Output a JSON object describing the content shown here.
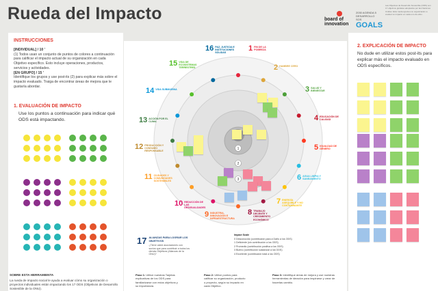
{
  "header": {
    "title": "Rueda del Impacto",
    "logo_text": "board of innovation",
    "logo_sub": "",
    "goals_top": "2030 AGENDA 5 DESARROLLO SOS",
    "goals_big": "GOALS"
  },
  "instructions": {
    "heading": "INSTRUCCIONES",
    "lines": [
      "[INDIVIDUAL] / 10 '",
      "(1) Todos usan un conjunto de puntos de colores a continuación para calificar el impacto actual de su organización en cada Objetivo específico. Esto incluye operaciones, productos, servicios y actividades.",
      "[EN GRUPO] / 15 '",
      "Identifique los grupos y use post-its (2) para explicar más sobre el impacto evaluado. Traiga de encontrar áreas de mejora que le gustaría abordar."
    ]
  },
  "section1": {
    "heading": "1. EVALUACIÓN DE IMPACTO",
    "text": "Use los puntos a continuación para indicar qué ODS está impactando."
  },
  "section2": {
    "heading": "2. EXPLICACIÓN DE IMPACTO",
    "text": "No dude en utilizar estos post-its para explicar más el impacto evaluado en ODS específicos."
  },
  "about": {
    "heading": "SOBRE ESTA HERRAMIENTA",
    "text": "La rueda de impacto social le ayuda a evaluar cómo su organización o proyectos individuales están impactando los 17 ODS (Objetivos de Desarrollo Sostenible de la ONU)."
  },
  "colors": {
    "yellow": "#f6e53a",
    "green": "#5ab54a",
    "purple": "#8c2f8b",
    "teal": "#27b5b5",
    "orange": "#e4542b",
    "note_yellow": "#fbf58f",
    "note_green": "#8fd36a",
    "note_purple": "#b981c9",
    "note_blue": "#9fc4ea",
    "note_pink": "#f4869a",
    "accent_red": "#e03c32"
  },
  "sdgs": [
    {
      "num": "1",
      "label": "FIN DE LA POBREZA",
      "color": "#e5243b"
    },
    {
      "num": "2",
      "label": "HAMBRE CERO",
      "color": "#dda63a"
    },
    {
      "num": "3",
      "label": "SALUD Y BIENESTAR",
      "color": "#4c9f38"
    },
    {
      "num": "4",
      "label": "EDUCACIÓN DE CALIDAD",
      "color": "#c5192d"
    },
    {
      "num": "5",
      "label": "IGUALDAD DE GÉNERO",
      "color": "#ff3a21"
    },
    {
      "num": "6",
      "label": "AGUA LIMPIA Y SANEAMIENTO",
      "color": "#26bde2"
    },
    {
      "num": "7",
      "label": "ENERGÍA ASEQUIBLE Y NO CONTAMINANTE",
      "color": "#fcc30b"
    },
    {
      "num": "8",
      "label": "TRABAJO DECENTE Y CRECIMIENTO ECONÓMICO",
      "color": "#a21942"
    },
    {
      "num": "9",
      "label": "INDUSTRIA, INNOVACIÓN E INFRAESTRUCTURA",
      "color": "#fd6925"
    },
    {
      "num": "10",
      "label": "REDUCCIÓN DE LAS DESIGUALDADES",
      "color": "#dd1367"
    },
    {
      "num": "11",
      "label": "CIUDADES Y COMUNIDADES SOSTENIBLES",
      "color": "#fd9d24"
    },
    {
      "num": "12",
      "label": "PRODUCCIÓN Y CONSUMO RESPONSABLE",
      "color": "#bf8b2e"
    },
    {
      "num": "13",
      "label": "ACCIÓN POR EL CLIMA",
      "color": "#3f7e44"
    },
    {
      "num": "14",
      "label": "VIDA SUBMARINA",
      "color": "#0a97d9"
    },
    {
      "num": "15",
      "label": "VIDA DE ECOSISTEMAS TERRESTRES",
      "color": "#56c02b"
    },
    {
      "num": "16",
      "label": "PAZ, JUSTICIA E INSTITUCIONES SÓLIDAS",
      "color": "#00689d"
    }
  ],
  "sdg17": {
    "num": "17",
    "label": "ALIANZAS PARA LOGRAR LOS OBJETIVOS",
    "sub": "¿Tiene usted asociaciones con socios que para contribuir a todos los demás Objetivos (Alianzas de la ONU)?"
  },
  "ring_numbers": [
    "0",
    "1",
    "2",
    "3"
  ],
  "impact_scale": {
    "heading": "Impact Scale",
    "items": [
      "0 Desconocido (contribución para a Daño a los ODS)",
      "1 Deficiente (sin contribución a los ODS)",
      "2 Promedio (contribución positiva a los ODS)",
      "3 Bueno (contribución sustancial a los ODS)",
      "4 Excelente (contribución total a los ODS)"
    ]
  },
  "steps": [
    {
      "label": "Paso 1:",
      "text": "Utilice nuestras Tarjetas explicativas de los ODS para familiarizarse con estos objetivos y su importancia."
    },
    {
      "label": "Paso 2:",
      "text": "Utilice puntos para calificar su organización, producto o proyecto, según su impacto en cada Objetivo."
    },
    {
      "label": "Paso 3:",
      "text": "Identifique áreas de mejora y use nuestras herramientas de ideación para inspirarse y crear de hacerlas cambio."
    }
  ],
  "top_note": "Las Objetivos de Desarrollo Sostenible (ODS) son 17 objetivos globales adoptados por las Naciones Unidas. Esta rueda ayuda a su organización a evaluar su impacto en cada uno de ellos."
}
